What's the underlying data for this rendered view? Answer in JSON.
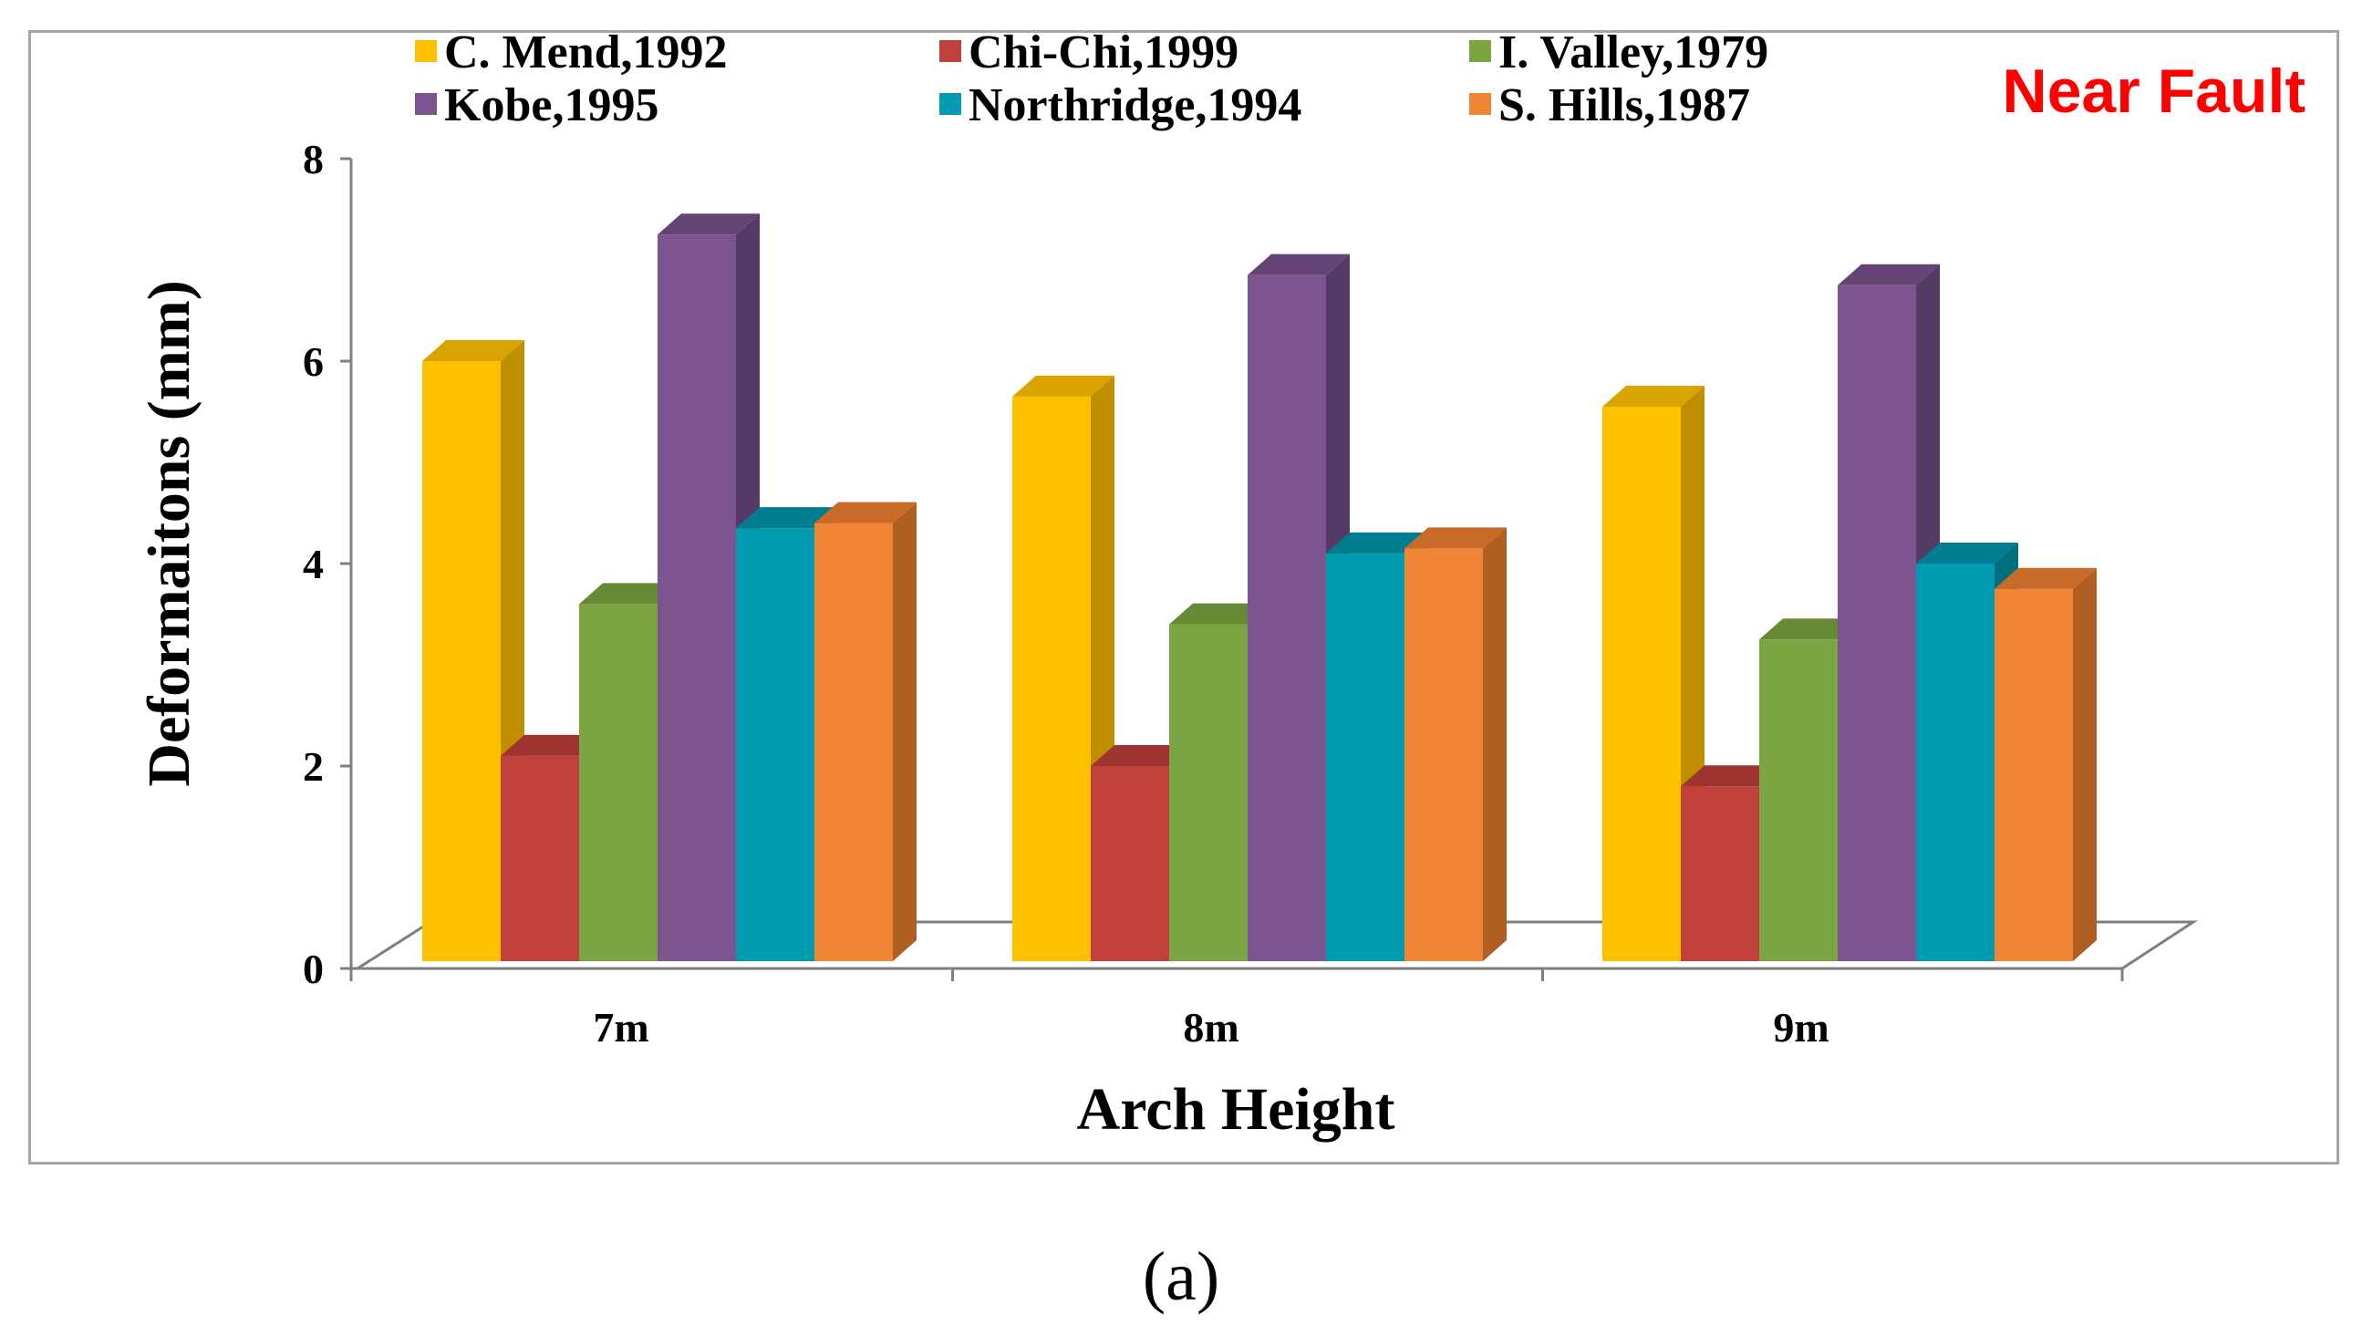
{
  "chart_data": {
    "type": "bar",
    "categories": [
      "7m",
      "8m",
      "9m"
    ],
    "series": [
      {
        "name": "C. Mend,1992",
        "values": [
          6.0,
          5.65,
          5.55
        ],
        "color": "#ffc000",
        "side_color": "#bf8f00",
        "top_color": "#d9a300"
      },
      {
        "name": "Chi-Chi,1999",
        "values": [
          2.1,
          2.0,
          1.8
        ],
        "color": "#c0403c",
        "side_color": "#8b2c28",
        "top_color": "#9e3330"
      },
      {
        "name": "I. Valley,1979",
        "values": [
          3.6,
          3.4,
          3.25
        ],
        "color": "#7ba443",
        "side_color": "#5a7a2f",
        "top_color": "#668a36"
      },
      {
        "name": "Kobe,1995",
        "values": [
          7.25,
          6.85,
          6.75
        ],
        "color": "#7c548f",
        "side_color": "#563a66",
        "top_color": "#644476"
      },
      {
        "name": "Northridge,1994",
        "values": [
          4.35,
          4.1,
          4.0
        ],
        "color": "#009bb0",
        "side_color": "#00707f",
        "top_color": "#007e8f"
      },
      {
        "name": "S. Hills,1987",
        "values": [
          4.4,
          4.15,
          3.75
        ],
        "color": "#f08535",
        "side_color": "#b05f22",
        "top_color": "#c86a28"
      }
    ],
    "title": "",
    "xlabel": "Arch Height",
    "ylabel": "Deformaitons (mm)",
    "ylim": [
      0,
      8
    ],
    "yticks": [
      "0",
      "2",
      "4",
      "6",
      "8"
    ],
    "legend_position": "top",
    "annotation": {
      "text": "Near Fault",
      "color": "#ff0000"
    }
  },
  "caption": "(a)"
}
